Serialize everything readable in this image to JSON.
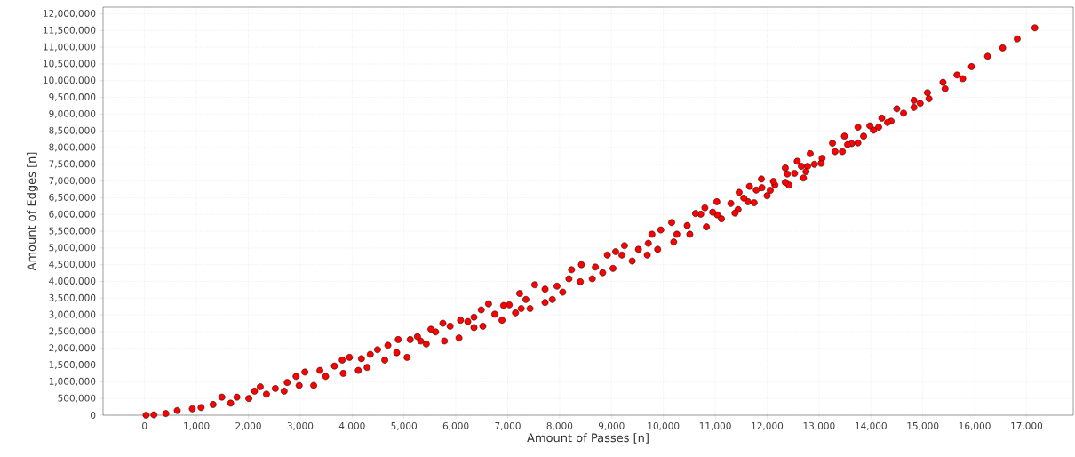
{
  "chart_data": {
    "type": "scatter",
    "xlabel": "Amount of Passes [n]",
    "ylabel": "Amount of Edges [n]",
    "color": "#ff0000",
    "marker": "circle",
    "grid": true,
    "xlim": [
      -800,
      17900
    ],
    "ylim": [
      0,
      12200000
    ],
    "xticks": [
      0,
      {
        "value": 1000,
        "label": "1,000"
      },
      {
        "value": 2000,
        "label": "2,000"
      },
      {
        "value": 3000,
        "label": "3,000"
      },
      {
        "value": 4000,
        "label": "4,000"
      },
      {
        "value": 5000,
        "label": "5,000"
      },
      {
        "value": 6000,
        "label": "6,000"
      },
      {
        "value": 7000,
        "label": "7,000"
      },
      {
        "value": 8000,
        "label": "8,000"
      },
      {
        "value": 9000,
        "label": "9,000"
      },
      {
        "value": 10000,
        "label": "10,000"
      },
      {
        "value": 11000,
        "label": "11,000"
      },
      {
        "value": 12000,
        "label": "12,000"
      },
      {
        "value": 13000,
        "label": "13,000"
      },
      {
        "value": 14000,
        "label": "14,000"
      },
      {
        "value": 15000,
        "label": "15,000"
      },
      {
        "value": 16000,
        "label": "16,000"
      },
      {
        "value": 17000,
        "label": "17,000"
      }
    ],
    "yticks": [
      0,
      {
        "value": 500000,
        "label": "500,000"
      },
      {
        "value": 1000000,
        "label": "1,000,000"
      },
      {
        "value": 1500000,
        "label": "1,500,000"
      },
      {
        "value": 2000000,
        "label": "2,000,000"
      },
      {
        "value": 2500000,
        "label": "2,500,000"
      },
      {
        "value": 3000000,
        "label": "3,000,000"
      },
      {
        "value": 3500000,
        "label": "3,500,000"
      },
      {
        "value": 4000000,
        "label": "4,000,000"
      },
      {
        "value": 4500000,
        "label": "4,500,000"
      },
      {
        "value": 5000000,
        "label": "5,000,000"
      },
      {
        "value": 5500000,
        "label": "5,500,000"
      },
      {
        "value": 6000000,
        "label": "6,000,000"
      },
      {
        "value": 6500000,
        "label": "6,500,000"
      },
      {
        "value": 7000000,
        "label": "7,000,000"
      },
      {
        "value": 7500000,
        "label": "7,500,000"
      },
      {
        "value": 8000000,
        "label": "8,000,000"
      },
      {
        "value": 8500000,
        "label": "8,500,000"
      },
      {
        "value": 9000000,
        "label": "9,000,000"
      },
      {
        "value": 9500000,
        "label": "9,500,000"
      },
      {
        "value": 10000000,
        "label": "10,000,000"
      },
      {
        "value": 10500000,
        "label": "10,500,000"
      },
      {
        "value": 11000000,
        "label": "11,000,000"
      },
      {
        "value": 11500000,
        "label": "11,500,000"
      },
      {
        "value": 12000000,
        "label": "12,000,000"
      }
    ],
    "x": [
      17160,
      16820,
      16540,
      16250,
      15940,
      15770,
      15660,
      15430,
      15390,
      15120,
      15090,
      14950,
      14830,
      14830,
      14630,
      14500,
      14390,
      14320,
      14210,
      14150,
      14050,
      13980,
      13860,
      13750,
      13750,
      13630,
      13550,
      13490,
      13450,
      13310,
      13260,
      13060,
      13040,
      12910,
      12830,
      12780,
      12750,
      12700,
      12660,
      12580,
      12530,
      12420,
      12390,
      12350,
      12350,
      12150,
      12120,
      12060,
      12000,
      11900,
      11890,
      11790,
      11750,
      11660,
      11630,
      11550,
      11460,
      11440,
      11380,
      11300,
      11120,
      11030,
      11040,
      10950,
      10800,
      10720,
      10620,
      10830,
      10510,
      10460,
      10260,
      10160,
      10200,
      9950,
      9890,
      9780,
      9710,
      9690,
      9520,
      9400,
      9250,
      9200,
      9080,
      9030,
      8920,
      8830,
      8690,
      8630,
      8420,
      8400,
      8230,
      8180,
      8060,
      7950,
      7860,
      7720,
      7720,
      7520,
      7430,
      7350,
      7260,
      7230,
      7150,
      7030,
      6920,
      6890,
      6750,
      6630,
      6520,
      6490,
      6350,
      6350,
      6230,
      6060,
      6090,
      5890,
      5780,
      5750,
      5610,
      5520,
      5430,
      5320,
      5260,
      5120,
      5060,
      4890,
      4860,
      4690,
      4630,
      4490,
      4350,
      4290,
      4180,
      4120,
      3950,
      3810,
      3830,
      3660,
      3490,
      3380,
      3260,
      3090,
      2980,
      2920,
      2750,
      2690,
      2520,
      2350,
      2230,
      2120,
      2010,
      1780,
      1660,
      1490,
      1320,
      1090,
      920,
      630,
      410,
      180,
      30
    ],
    "values": [
      11580000,
      11250000,
      10980000,
      10730000,
      10420000,
      10060000,
      10170000,
      9760000,
      9950000,
      9460000,
      9640000,
      9320000,
      9410000,
      9200000,
      9030000,
      9160000,
      8790000,
      8750000,
      8880000,
      8610000,
      8520000,
      8650000,
      8340000,
      8610000,
      8140000,
      8120000,
      8090000,
      8340000,
      7880000,
      7880000,
      8130000,
      7680000,
      7530000,
      7500000,
      7820000,
      7440000,
      7280000,
      7090000,
      7440000,
      7590000,
      7230000,
      6880000,
      7210000,
      6960000,
      7390000,
      6880000,
      6990000,
      6720000,
      6560000,
      6800000,
      7060000,
      6730000,
      6350000,
      6840000,
      6380000,
      6490000,
      6660000,
      6150000,
      6040000,
      6330000,
      5870000,
      6380000,
      5990000,
      6070000,
      6200000,
      6010000,
      6030000,
      5630000,
      5410000,
      5670000,
      5410000,
      5760000,
      5180000,
      5540000,
      4960000,
      5410000,
      5140000,
      4790000,
      4960000,
      4610000,
      5070000,
      4790000,
      4890000,
      4390000,
      4790000,
      4260000,
      4430000,
      4080000,
      4500000,
      3990000,
      4350000,
      4080000,
      3680000,
      3860000,
      3460000,
      3370000,
      3770000,
      3900000,
      3190000,
      3460000,
      3190000,
      3640000,
      3060000,
      3300000,
      3280000,
      2840000,
      3020000,
      3330000,
      2660000,
      3150000,
      2930000,
      2620000,
      2800000,
      2310000,
      2840000,
      2660000,
      2220000,
      2750000,
      2490000,
      2570000,
      2130000,
      2220000,
      2350000,
      2260000,
      1730000,
      2260000,
      1870000,
      2090000,
      1650000,
      1960000,
      1820000,
      1430000,
      1690000,
      1340000,
      1730000,
      1650000,
      1250000,
      1470000,
      1160000,
      1340000,
      890000,
      1290000,
      890000,
      1160000,
      980000,
      720000,
      800000,
      630000,
      850000,
      720000,
      500000,
      540000,
      360000,
      540000,
      320000,
      230000,
      190000,
      140000,
      50000,
      10000,
      0
    ]
  }
}
